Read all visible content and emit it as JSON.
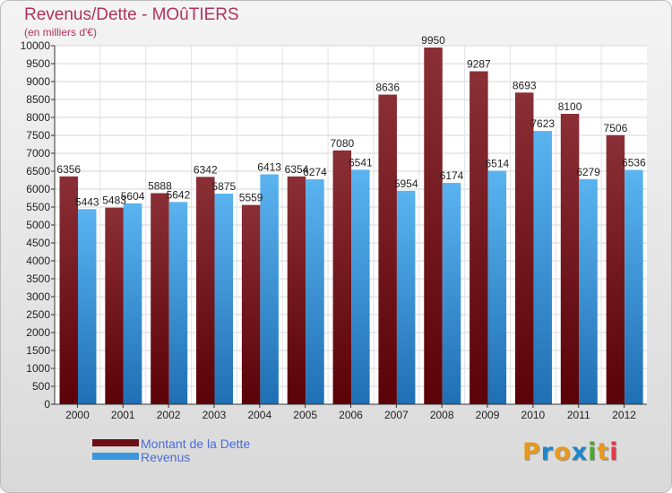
{
  "title": "Revenus/Dette - MOûTIERS",
  "subtitle": "(en milliers d'€)",
  "colors": {
    "dette": "#6b0f16",
    "revenus": "#3a95dc",
    "accent": "#b0325e"
  },
  "legend": [
    {
      "label": "Montant de la Dette",
      "color": "#6b0f16"
    },
    {
      "label": "Revenus",
      "color": "#3a95dc"
    }
  ],
  "logo": {
    "letters": [
      "P",
      "r",
      "o",
      "x",
      "i",
      "t",
      "i"
    ],
    "colors": [
      "#e8991c",
      "#1f86c9",
      "#e8991c",
      "#1f86c9",
      "#4aa82f",
      "#e8991c",
      "#e03a4a"
    ]
  },
  "chart_data": {
    "type": "bar",
    "categories": [
      "2000",
      "2001",
      "2002",
      "2003",
      "2004",
      "2005",
      "2006",
      "2007",
      "2008",
      "2009",
      "2010",
      "2011",
      "2012"
    ],
    "series": [
      {
        "name": "Montant de la Dette",
        "values": [
          6356,
          5483,
          5888,
          6342,
          5559,
          6354,
          7080,
          8636,
          9950,
          9287,
          8693,
          8100,
          7506
        ]
      },
      {
        "name": "Revenus",
        "values": [
          5443,
          5604,
          5642,
          5875,
          6413,
          6274,
          6541,
          5954,
          6174,
          6514,
          7623,
          6279,
          6536
        ]
      }
    ],
    "ylim": [
      0,
      10000
    ],
    "yticks": [
      0,
      500,
      1000,
      1500,
      2000,
      2500,
      3000,
      3500,
      4000,
      4500,
      5000,
      5500,
      6000,
      6500,
      7000,
      7500,
      8000,
      8500,
      9000,
      9500,
      10000
    ],
    "grid": true
  }
}
